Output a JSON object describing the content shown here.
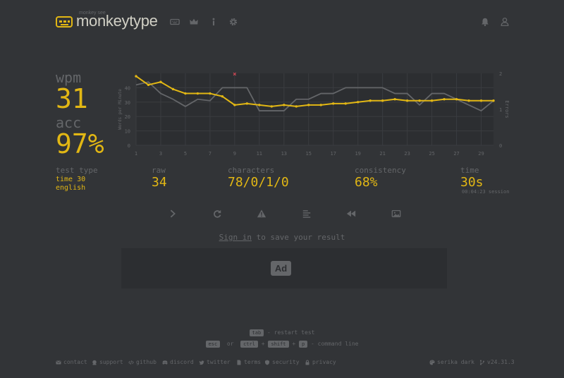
{
  "header": {
    "logo_small": "monkey see",
    "logo_text": "monkeytype",
    "nav_icons": [
      "keyboard-icon",
      "crown-icon",
      "info-icon",
      "gear-icon"
    ],
    "right_icons": [
      "bell-icon",
      "user-icon"
    ]
  },
  "result": {
    "wpm_label": "wpm",
    "wpm": "31",
    "acc_label": "acc",
    "acc": "97%"
  },
  "chart_data": {
    "type": "line",
    "ylabel": "Words per Minute",
    "y2label": "Errors",
    "ylim": [
      0,
      50
    ],
    "y_ticks": [
      "0",
      "10",
      "20",
      "30",
      "40"
    ],
    "y2lim": [
      0,
      2
    ],
    "y2_ticks": [
      "0",
      "1",
      "2"
    ],
    "x_ticks": [
      "1",
      "3",
      "5",
      "7",
      "9",
      "11",
      "13",
      "15",
      "17",
      "19",
      "21",
      "23",
      "25",
      "27",
      "29"
    ],
    "x": [
      1,
      2,
      3,
      4,
      5,
      6,
      7,
      8,
      9,
      10,
      11,
      12,
      13,
      14,
      15,
      16,
      17,
      18,
      19,
      20,
      21,
      22,
      23,
      24,
      25,
      26,
      27,
      28,
      29,
      30
    ],
    "series": [
      {
        "name": "wpm",
        "color": "#e2b714",
        "values": [
          48,
          42,
          44,
          39,
          36,
          36,
          36,
          34,
          28,
          29,
          28,
          27,
          28,
          27,
          28,
          28,
          29,
          29,
          30,
          31,
          31,
          32,
          31,
          31,
          31,
          32,
          32,
          31,
          31,
          31
        ]
      },
      {
        "name": "raw",
        "color": "#646669",
        "values": [
          42,
          44,
          36,
          32,
          27,
          32,
          31,
          40,
          40,
          40,
          24,
          24,
          24,
          32,
          32,
          36,
          36,
          40,
          40,
          40,
          40,
          36,
          36,
          28,
          36,
          36,
          32,
          28,
          24,
          31
        ]
      }
    ],
    "errors": [
      {
        "x": 9,
        "y": 2
      }
    ],
    "grid": true
  },
  "stats": {
    "test_type_label": "test type",
    "test_type_mode": "time 30",
    "test_type_lang": "english",
    "raw_label": "raw",
    "raw": "34",
    "characters_label": "characters",
    "characters": "78/0/1/0",
    "consistency_label": "consistency",
    "consistency": "68%",
    "time_label": "time",
    "time": "30s",
    "session": "00:04:23 session"
  },
  "actions": [
    "next-test-icon",
    "restart-icon",
    "warning-icon",
    "words-history-icon",
    "replay-icon",
    "screenshot-icon"
  ],
  "signin": {
    "link": "Sign in",
    "text": " to save your result"
  },
  "ad": {
    "label": "Ad"
  },
  "hints": {
    "tab_key": "tab",
    "restart": " - restart test",
    "esc_key": "esc",
    "or": "or",
    "ctrl_key": "ctrl",
    "plus": "+",
    "shift_key": "shift",
    "p_key": "p",
    "command": " - command line"
  },
  "footer": {
    "contact": "contact",
    "support": "support",
    "github": "github",
    "discord": "discord",
    "twitter": "twitter",
    "terms": "terms",
    "security": "security",
    "privacy": "privacy",
    "theme": "serika dark",
    "version": "v24.31.3"
  },
  "colors": {
    "background": "#323437",
    "accent": "#e2b714",
    "sub": "#646669",
    "text": "#d1d0c5",
    "error": "#ca4754"
  }
}
